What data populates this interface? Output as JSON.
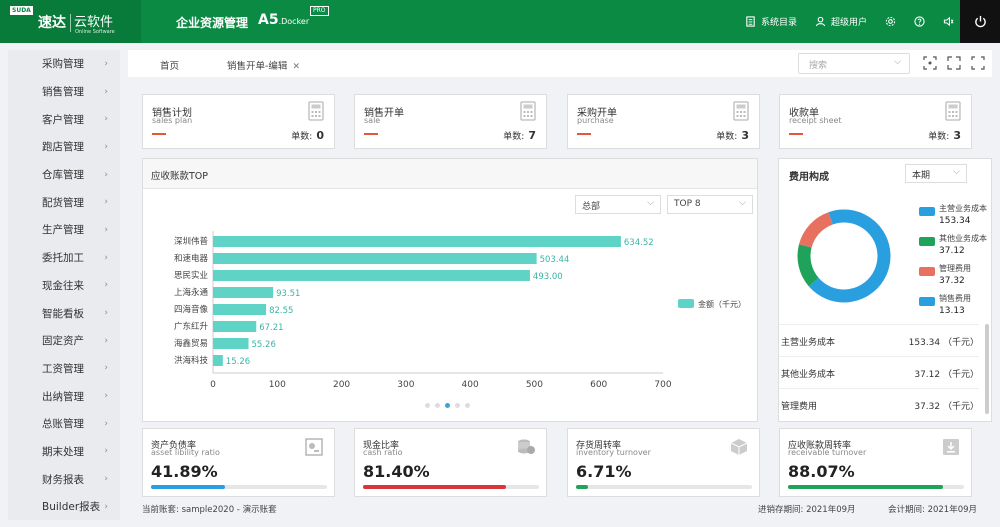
{
  "brand": {
    "badge": "SUDA",
    "name": "速达",
    "cloud": "云软件",
    "cloud_sub": "Online Software"
  },
  "header": {
    "system_title": "企业资源管理",
    "product": "A5",
    "product_sub": ".Docker",
    "pro_badge": "PRO",
    "menu_catalog": "系统目录",
    "user": "超级用户"
  },
  "sidebar": {
    "items": [
      {
        "label": "采购管理"
      },
      {
        "label": "销售管理"
      },
      {
        "label": "客户管理"
      },
      {
        "label": "跑店管理"
      },
      {
        "label": "仓库管理"
      },
      {
        "label": "配货管理"
      },
      {
        "label": "生产管理"
      },
      {
        "label": "委托加工"
      },
      {
        "label": "现金往来"
      },
      {
        "label": "智能看板"
      },
      {
        "label": "固定资产"
      },
      {
        "label": "工资管理"
      },
      {
        "label": "出纳管理"
      },
      {
        "label": "总账管理"
      },
      {
        "label": "期末处理"
      },
      {
        "label": "财务报表"
      },
      {
        "label": "Builder报表"
      }
    ]
  },
  "tabs": {
    "home": "首页",
    "sales_edit": "销售开单-编辑"
  },
  "search": {
    "placeholder": "搜索"
  },
  "top_cards": [
    {
      "title": "销售计划",
      "sub": "sales plan",
      "count_label": "单数:",
      "count": "0"
    },
    {
      "title": "销售开单",
      "sub": "sale",
      "count_label": "单数:",
      "count": "7"
    },
    {
      "title": "采购开单",
      "sub": "purchase",
      "count_label": "单数:",
      "count": "3"
    },
    {
      "title": "收款单",
      "sub": "receipt sheet",
      "count_label": "单数:",
      "count": "3"
    }
  ],
  "ar_panel": {
    "title": "应收账款TOP",
    "filter_scope": "总部",
    "filter_top": "TOP 8",
    "legend": "金额（千元）"
  },
  "chart_data": [
    {
      "type": "bar",
      "orientation": "horizontal",
      "categories": [
        "深圳伟普",
        "和速电器",
        "思民实业",
        "上海永通",
        "四海音像",
        "广东红升",
        "海鑫贸易",
        "洪海科技"
      ],
      "values": [
        634.52,
        503.44,
        493.0,
        93.51,
        82.55,
        67.21,
        55.26,
        15.26
      ],
      "value_labels": [
        "634.52",
        "503.44",
        "493.00",
        "93.51",
        "82.55",
        "67.21",
        "55.26",
        "15.26"
      ],
      "xlim": [
        0,
        700
      ],
      "xticks": [
        0,
        100,
        200,
        300,
        400,
        500,
        600,
        700
      ],
      "series": [
        {
          "name": "金额（千元）",
          "color": "#5fd3c6"
        }
      ],
      "legend_position": "right"
    },
    {
      "type": "pie",
      "title": "费用构成",
      "donut": true,
      "labels": [
        "主营业务成本",
        "其他业务成本",
        "管理费用",
        "销售费用"
      ],
      "values": [
        153.34,
        37.12,
        37.32,
        13.13
      ],
      "value_labels": [
        "153.34",
        "37.12",
        "37.32",
        "13.13"
      ],
      "colors": [
        "#2a9fe0",
        "#1fa35a",
        "#e8705e",
        "#2a9fe0"
      ],
      "legend_position": "right"
    }
  ],
  "expense_panel": {
    "title": "费用构成",
    "period": "本期",
    "rows": [
      {
        "k": "主营业务成本",
        "v": "153.34 （千元）"
      },
      {
        "k": "其他业务成本",
        "v": "37.12 （千元）"
      },
      {
        "k": "管理费用",
        "v": "37.32 （千元）"
      }
    ]
  },
  "bottom_cards": [
    {
      "title": "资产负债率",
      "sub": "asset libility ratio",
      "value": "41.89%",
      "progress": 0.42,
      "color": "#2a9fe0"
    },
    {
      "title": "现金比率",
      "sub": "cash ratio",
      "value": "81.40%",
      "progress": 0.81,
      "color": "#d9343a"
    },
    {
      "title": "存货周转率",
      "sub": "inventory turnover",
      "value": "6.71%",
      "progress": 0.07,
      "color": "#1fa35a"
    },
    {
      "title": "应收账款周转率",
      "sub": "receivable turnover",
      "value": "88.07%",
      "progress": 0.88,
      "color": "#1fa35a"
    }
  ],
  "footer": {
    "account": "当前账套: sample2020 - 演示账套",
    "inventory_period": "进销存期间: 2021年09月",
    "accounting_period": "会计期间: 2021年09月"
  }
}
